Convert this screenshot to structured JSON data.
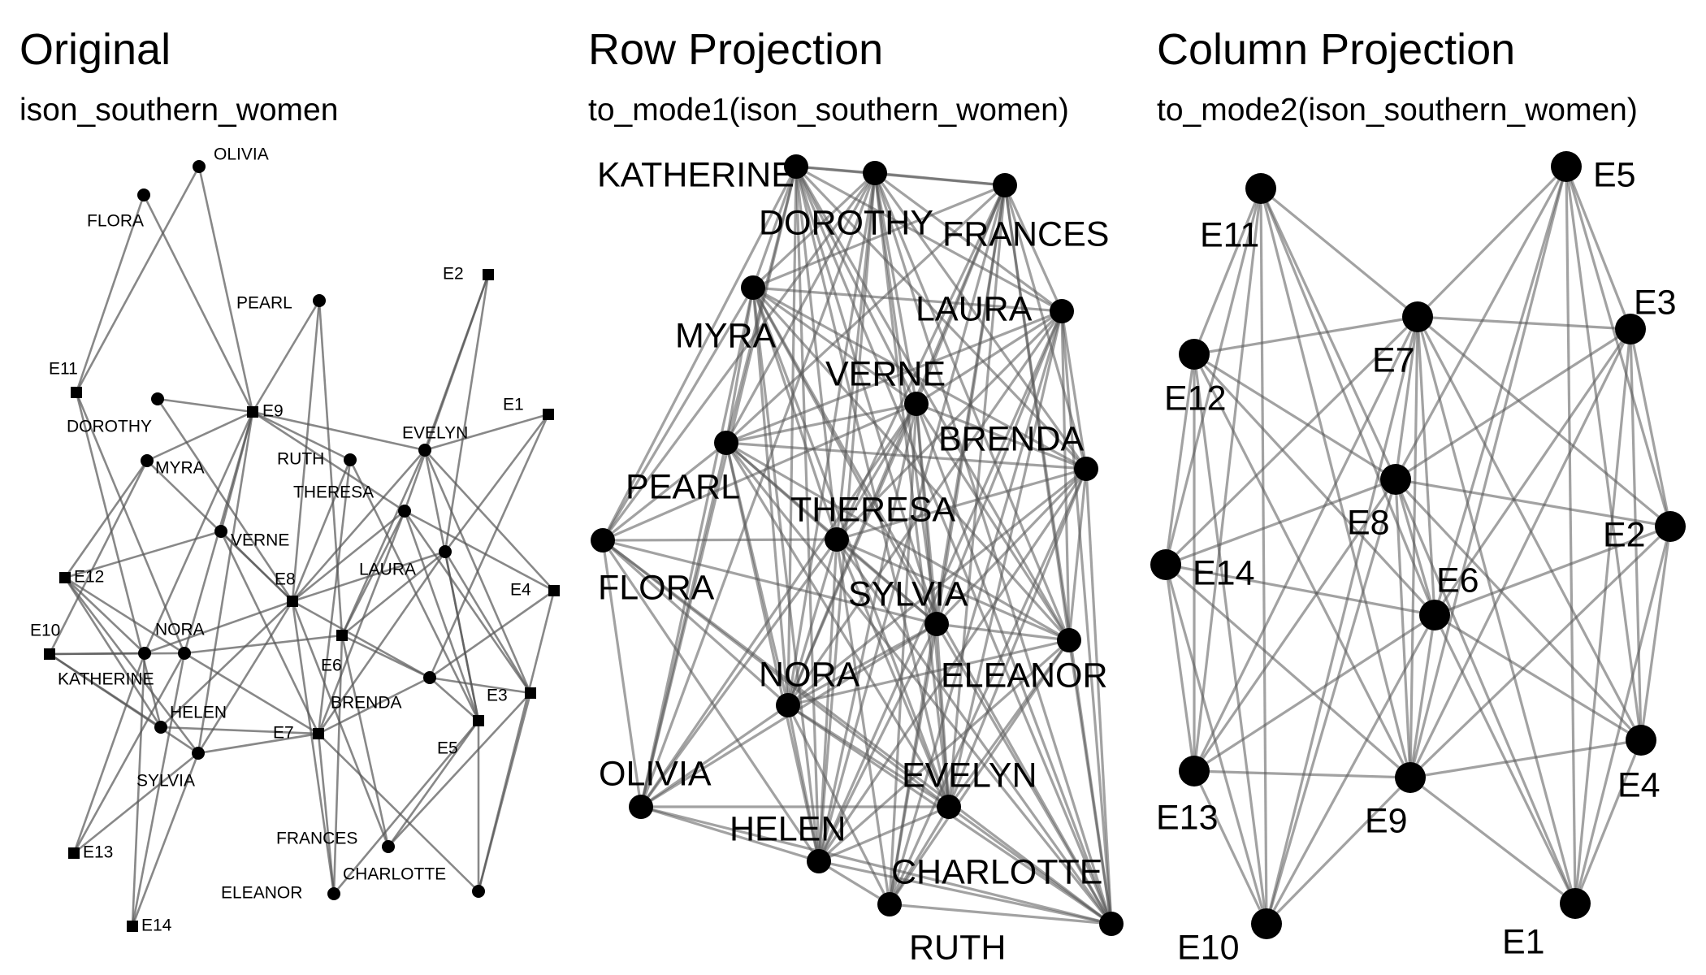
{
  "panels": [
    {
      "id": "original",
      "title": "Original",
      "subtitle": "ison_southern_women",
      "nodes": [
        {
          "id": "OLIVIA",
          "label": "OLIVIA",
          "shape": "circle"
        },
        {
          "id": "FLORA",
          "label": "FLORA",
          "shape": "circle"
        },
        {
          "id": "PEARL",
          "label": "PEARL",
          "shape": "circle"
        },
        {
          "id": "DOROTHY",
          "label": "DOROTHY",
          "shape": "circle"
        },
        {
          "id": "MYRA",
          "label": "MYRA",
          "shape": "circle"
        },
        {
          "id": "RUTH",
          "label": "RUTH",
          "shape": "circle"
        },
        {
          "id": "EVELYN",
          "label": "EVELYN",
          "shape": "circle"
        },
        {
          "id": "THERESA",
          "label": "THERESA",
          "shape": "circle"
        },
        {
          "id": "VERNE",
          "label": "VERNE",
          "shape": "circle"
        },
        {
          "id": "LAURA",
          "label": "LAURA",
          "shape": "circle"
        },
        {
          "id": "NORA",
          "label": "NORA",
          "shape": "circle"
        },
        {
          "id": "KATHERINE",
          "label": "KATHERINE",
          "shape": "circle"
        },
        {
          "id": "BRENDA",
          "label": "BRENDA",
          "shape": "circle"
        },
        {
          "id": "HELEN",
          "label": "HELEN",
          "shape": "circle"
        },
        {
          "id": "SYLVIA",
          "label": "SYLVIA",
          "shape": "circle"
        },
        {
          "id": "FRANCES",
          "label": "FRANCES",
          "shape": "circle"
        },
        {
          "id": "CHARLOTTE",
          "label": "CHARLOTTE",
          "shape": "circle"
        },
        {
          "id": "ELEANOR",
          "label": "ELEANOR",
          "shape": "circle"
        },
        {
          "id": "E1",
          "label": "E1",
          "shape": "square"
        },
        {
          "id": "E2",
          "label": "E2",
          "shape": "square"
        },
        {
          "id": "E3",
          "label": "E3",
          "shape": "square"
        },
        {
          "id": "E4",
          "label": "E4",
          "shape": "square"
        },
        {
          "id": "E5",
          "label": "E5",
          "shape": "square"
        },
        {
          "id": "E6",
          "label": "E6",
          "shape": "square"
        },
        {
          "id": "E7",
          "label": "E7",
          "shape": "square"
        },
        {
          "id": "E8",
          "label": "E8",
          "shape": "square"
        },
        {
          "id": "E9",
          "label": "E9",
          "shape": "square"
        },
        {
          "id": "E10",
          "label": "E10",
          "shape": "square"
        },
        {
          "id": "E11",
          "label": "E11",
          "shape": "square"
        },
        {
          "id": "E12",
          "label": "E12",
          "shape": "square"
        },
        {
          "id": "E13",
          "label": "E13",
          "shape": "square"
        },
        {
          "id": "E14",
          "label": "E14",
          "shape": "square"
        }
      ],
      "edges": [
        [
          "EVELYN",
          "E1"
        ],
        [
          "EVELYN",
          "E2"
        ],
        [
          "EVELYN",
          "E3"
        ],
        [
          "EVELYN",
          "E4"
        ],
        [
          "EVELYN",
          "E5"
        ],
        [
          "EVELYN",
          "E6"
        ],
        [
          "EVELYN",
          "E8"
        ],
        [
          "EVELYN",
          "E9"
        ],
        [
          "LAURA",
          "E1"
        ],
        [
          "LAURA",
          "E2"
        ],
        [
          "LAURA",
          "E3"
        ],
        [
          "LAURA",
          "E5"
        ],
        [
          "LAURA",
          "E6"
        ],
        [
          "LAURA",
          "E7"
        ],
        [
          "LAURA",
          "E8"
        ],
        [
          "THERESA",
          "E2"
        ],
        [
          "THERESA",
          "E3"
        ],
        [
          "THERESA",
          "E4"
        ],
        [
          "THERESA",
          "E5"
        ],
        [
          "THERESA",
          "E6"
        ],
        [
          "THERESA",
          "E7"
        ],
        [
          "THERESA",
          "E8"
        ],
        [
          "THERESA",
          "E9"
        ],
        [
          "BRENDA",
          "E1"
        ],
        [
          "BRENDA",
          "E3"
        ],
        [
          "BRENDA",
          "E4"
        ],
        [
          "BRENDA",
          "E5"
        ],
        [
          "BRENDA",
          "E6"
        ],
        [
          "BRENDA",
          "E7"
        ],
        [
          "BRENDA",
          "E8"
        ],
        [
          "CHARLOTTE",
          "E3"
        ],
        [
          "CHARLOTTE",
          "E4"
        ],
        [
          "CHARLOTTE",
          "E5"
        ],
        [
          "CHARLOTTE",
          "E7"
        ],
        [
          "FRANCES",
          "E3"
        ],
        [
          "FRANCES",
          "E5"
        ],
        [
          "FRANCES",
          "E6"
        ],
        [
          "FRANCES",
          "E8"
        ],
        [
          "ELEANOR",
          "E5"
        ],
        [
          "ELEANOR",
          "E6"
        ],
        [
          "ELEANOR",
          "E7"
        ],
        [
          "ELEANOR",
          "E8"
        ],
        [
          "PEARL",
          "E6"
        ],
        [
          "PEARL",
          "E8"
        ],
        [
          "PEARL",
          "E9"
        ],
        [
          "RUTH",
          "E5"
        ],
        [
          "RUTH",
          "E7"
        ],
        [
          "RUTH",
          "E8"
        ],
        [
          "RUTH",
          "E9"
        ],
        [
          "VERNE",
          "E7"
        ],
        [
          "VERNE",
          "E8"
        ],
        [
          "VERNE",
          "E9"
        ],
        [
          "VERNE",
          "E12"
        ],
        [
          "MYRA",
          "E8"
        ],
        [
          "MYRA",
          "E9"
        ],
        [
          "MYRA",
          "E10"
        ],
        [
          "MYRA",
          "E12"
        ],
        [
          "KATHERINE",
          "E8"
        ],
        [
          "KATHERINE",
          "E9"
        ],
        [
          "KATHERINE",
          "E10"
        ],
        [
          "KATHERINE",
          "E12"
        ],
        [
          "KATHERINE",
          "E13"
        ],
        [
          "KATHERINE",
          "E14"
        ],
        [
          "SYLVIA",
          "E7"
        ],
        [
          "SYLVIA",
          "E8"
        ],
        [
          "SYLVIA",
          "E9"
        ],
        [
          "SYLVIA",
          "E10"
        ],
        [
          "SYLVIA",
          "E12"
        ],
        [
          "SYLVIA",
          "E13"
        ],
        [
          "SYLVIA",
          "E14"
        ],
        [
          "NORA",
          "E6"
        ],
        [
          "NORA",
          "E7"
        ],
        [
          "NORA",
          "E9"
        ],
        [
          "NORA",
          "E10"
        ],
        [
          "NORA",
          "E11"
        ],
        [
          "NORA",
          "E12"
        ],
        [
          "NORA",
          "E13"
        ],
        [
          "NORA",
          "E14"
        ],
        [
          "HELEN",
          "E7"
        ],
        [
          "HELEN",
          "E8"
        ],
        [
          "HELEN",
          "E10"
        ],
        [
          "HELEN",
          "E11"
        ],
        [
          "HELEN",
          "E12"
        ],
        [
          "DOROTHY",
          "E8"
        ],
        [
          "DOROTHY",
          "E9"
        ],
        [
          "OLIVIA",
          "E9"
        ],
        [
          "OLIVIA",
          "E11"
        ],
        [
          "FLORA",
          "E9"
        ],
        [
          "FLORA",
          "E11"
        ]
      ]
    },
    {
      "id": "row-projection",
      "title": "Row Projection",
      "subtitle": "to_mode1(ison_southern_women)",
      "nodes": [
        {
          "id": "KATHERINE",
          "label": "KATHERINE",
          "shape": "circle"
        },
        {
          "id": "DOROTHY",
          "label": "DOROTHY",
          "shape": "circle"
        },
        {
          "id": "FRANCES",
          "label": "FRANCES",
          "shape": "circle"
        },
        {
          "id": "MYRA",
          "label": "MYRA",
          "shape": "circle"
        },
        {
          "id": "LAURA",
          "label": "LAURA",
          "shape": "circle"
        },
        {
          "id": "VERNE",
          "label": "VERNE",
          "shape": "circle"
        },
        {
          "id": "BRENDA",
          "label": "BRENDA",
          "shape": "circle"
        },
        {
          "id": "PEARL",
          "label": "PEARL",
          "shape": "circle"
        },
        {
          "id": "THERESA",
          "label": "THERESA",
          "shape": "circle"
        },
        {
          "id": "FLORA",
          "label": "FLORA",
          "shape": "circle"
        },
        {
          "id": "SYLVIA",
          "label": "SYLVIA",
          "shape": "circle"
        },
        {
          "id": "ELEANOR",
          "label": "ELEANOR",
          "shape": "circle"
        },
        {
          "id": "NORA",
          "label": "NORA",
          "shape": "circle"
        },
        {
          "id": "OLIVIA",
          "label": "OLIVIA",
          "shape": "circle"
        },
        {
          "id": "EVELYN",
          "label": "EVELYN",
          "shape": "circle"
        },
        {
          "id": "HELEN",
          "label": "HELEN",
          "shape": "circle"
        },
        {
          "id": "CHARLOTTE",
          "label": "CHARLOTTE",
          "shape": "circle"
        },
        {
          "id": "RUTH",
          "label": "RUTH",
          "shape": "circle"
        }
      ]
    },
    {
      "id": "column-projection",
      "title": "Column Projection",
      "subtitle": "to_mode2(ison_southern_women)",
      "nodes": [
        {
          "id": "E5",
          "label": "E5",
          "shape": "circle"
        },
        {
          "id": "E11",
          "label": "E11",
          "shape": "circle"
        },
        {
          "id": "E3",
          "label": "E3",
          "shape": "circle"
        },
        {
          "id": "E7",
          "label": "E7",
          "shape": "circle"
        },
        {
          "id": "E12",
          "label": "E12",
          "shape": "circle"
        },
        {
          "id": "E8",
          "label": "E8",
          "shape": "circle"
        },
        {
          "id": "E2",
          "label": "E2",
          "shape": "circle"
        },
        {
          "id": "E14",
          "label": "E14",
          "shape": "circle"
        },
        {
          "id": "E6",
          "label": "E6",
          "shape": "circle"
        },
        {
          "id": "E4",
          "label": "E4",
          "shape": "circle"
        },
        {
          "id": "E13",
          "label": "E13",
          "shape": "circle"
        },
        {
          "id": "E9",
          "label": "E9",
          "shape": "circle"
        },
        {
          "id": "E1",
          "label": "E1",
          "shape": "circle"
        },
        {
          "id": "E10",
          "label": "E10",
          "shape": "circle"
        }
      ]
    }
  ]
}
